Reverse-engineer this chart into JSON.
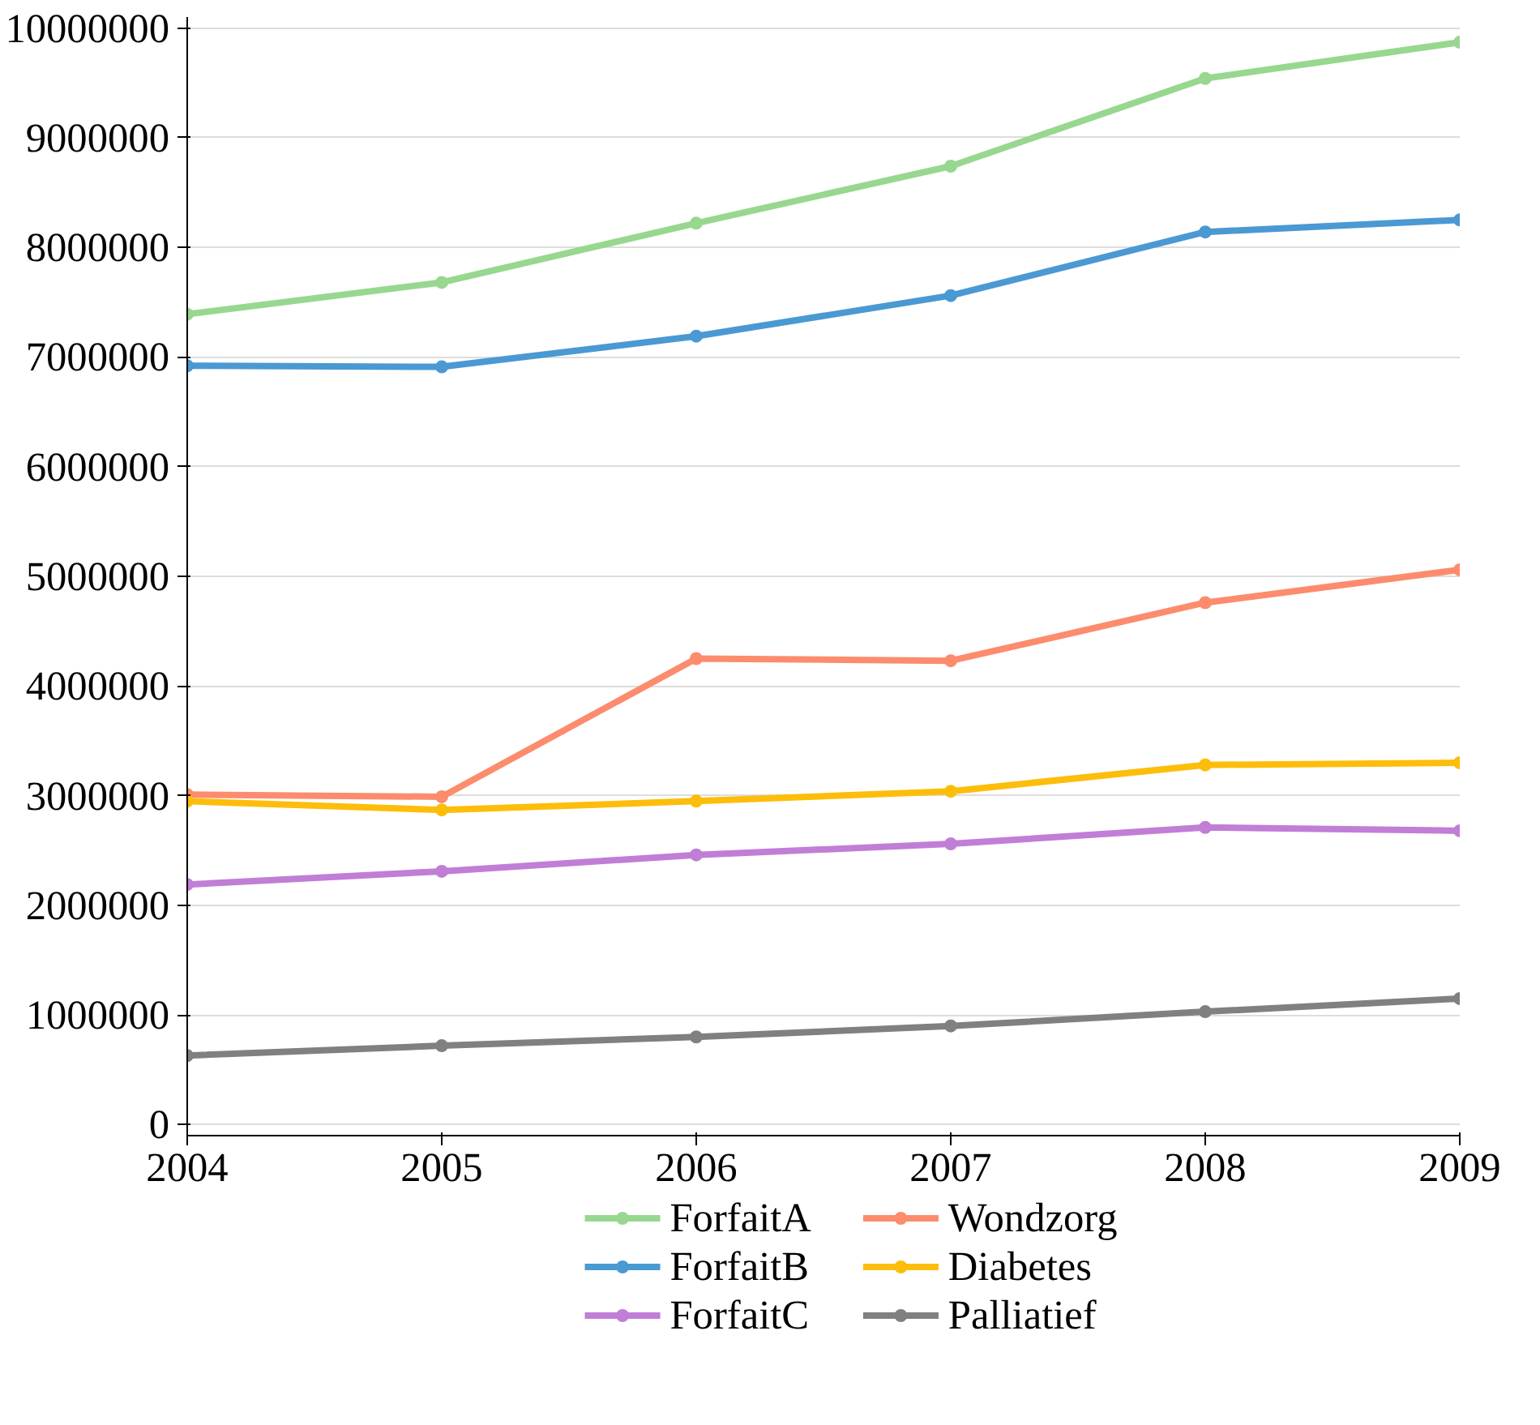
{
  "chart_data": {
    "type": "line",
    "x": [
      2004,
      2005,
      2006,
      2007,
      2008,
      2009
    ],
    "series": [
      {
        "name": "ForfaitA",
        "color": "#98d78f",
        "values": [
          7390000,
          7680000,
          8220000,
          8740000,
          9540000,
          9870000
        ]
      },
      {
        "name": "ForfaitB",
        "color": "#4a99d3",
        "values": [
          6920000,
          6910000,
          7190000,
          7560000,
          8140000,
          8250000
        ]
      },
      {
        "name": "ForfaitC",
        "color": "#c07ed6",
        "values": [
          2190000,
          2310000,
          2460000,
          2560000,
          2710000,
          2680000
        ]
      },
      {
        "name": "Wondzorg",
        "color": "#fc8c6d",
        "values": [
          3010000,
          2990000,
          4250000,
          4230000,
          4760000,
          5060000
        ]
      },
      {
        "name": "Diabetes",
        "color": "#fdbd0b",
        "values": [
          2950000,
          2870000,
          2950000,
          3040000,
          3280000,
          3300000
        ]
      },
      {
        "name": "Palliatief",
        "color": "#808080",
        "values": [
          630000,
          720000,
          800000,
          900000,
          1030000,
          1150000
        ]
      }
    ],
    "xlim": [
      2004,
      2009
    ],
    "xticks": [
      2004,
      2005,
      2006,
      2007,
      2008,
      2009
    ],
    "ylim": [
      -100000,
      10100000
    ],
    "yticks": [
      0,
      1000000,
      2000000,
      3000000,
      4000000,
      5000000,
      6000000,
      7000000,
      8000000,
      9000000,
      10000000
    ],
    "grid": "y",
    "legend": "bottom",
    "marker": "circle",
    "line_style": "solid"
  }
}
